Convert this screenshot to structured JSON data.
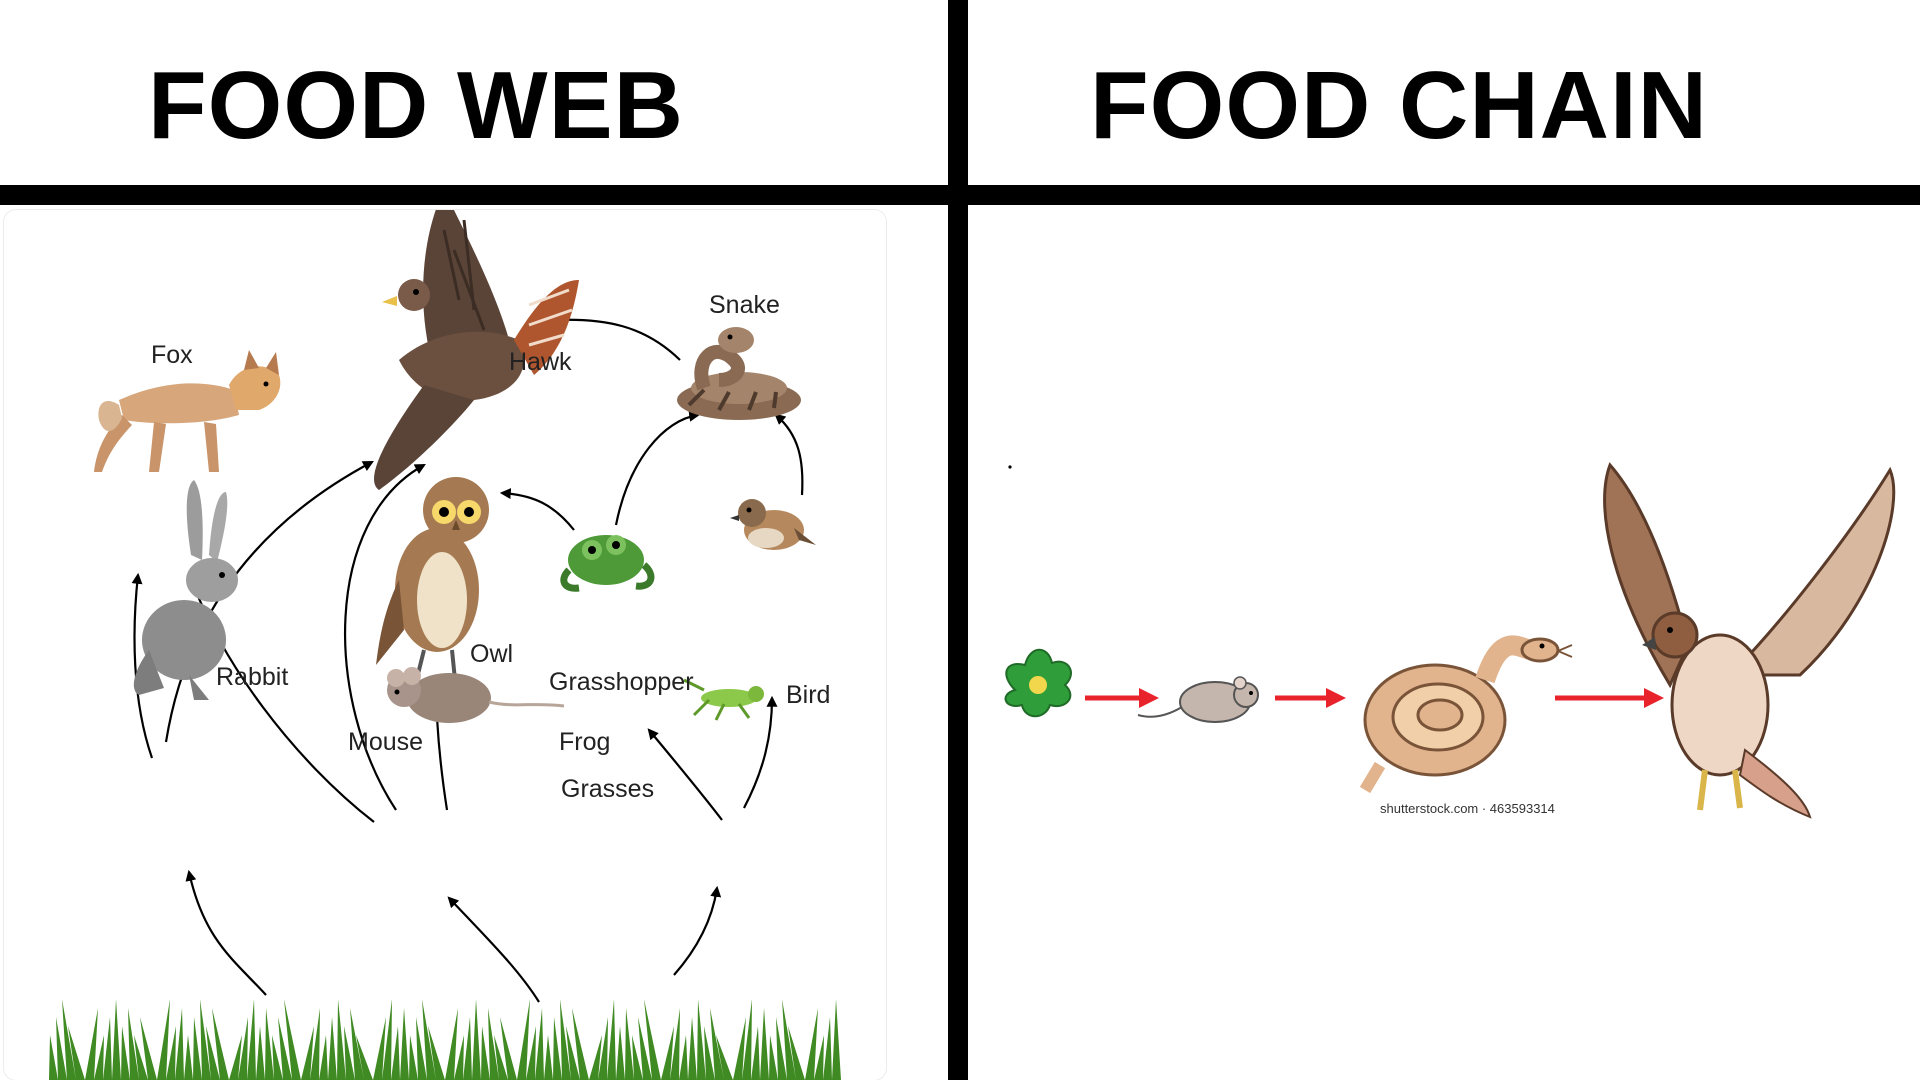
{
  "food_web": {
    "title": "FOOD WEB",
    "nodes": [
      {
        "id": "hawk",
        "label": "Hawk"
      },
      {
        "id": "fox",
        "label": "Fox"
      },
      {
        "id": "snake",
        "label": "Snake"
      },
      {
        "id": "owl",
        "label": "Owl"
      },
      {
        "id": "bird",
        "label": "Bird"
      },
      {
        "id": "frog",
        "label": "Frog"
      },
      {
        "id": "rabbit",
        "label": "Rabbit"
      },
      {
        "id": "mouse",
        "label": "Mouse"
      },
      {
        "id": "grasshopper",
        "label": "Grasshopper"
      },
      {
        "id": "grasses",
        "label": "Grasses"
      }
    ],
    "edges": [
      {
        "from": "grasses",
        "to": "rabbit"
      },
      {
        "from": "grasses",
        "to": "mouse"
      },
      {
        "from": "grasses",
        "to": "grasshopper"
      },
      {
        "from": "rabbit",
        "to": "fox"
      },
      {
        "from": "rabbit",
        "to": "hawk"
      },
      {
        "from": "mouse",
        "to": "fox"
      },
      {
        "from": "mouse",
        "to": "hawk"
      },
      {
        "from": "mouse",
        "to": "owl"
      },
      {
        "from": "grasshopper",
        "to": "frog"
      },
      {
        "from": "grasshopper",
        "to": "bird"
      },
      {
        "from": "frog",
        "to": "owl"
      },
      {
        "from": "frog",
        "to": "snake"
      },
      {
        "from": "bird",
        "to": "snake"
      },
      {
        "from": "snake",
        "to": "hawk"
      }
    ]
  },
  "food_chain": {
    "title": "FOOD CHAIN",
    "sequence": [
      "plant",
      "mouse",
      "snake",
      "hawk"
    ],
    "arrow_color": "#e8232b",
    "credit": "shutterstock.com · 463593314"
  },
  "colors": {
    "divider": "#000000",
    "arrow": "#000000",
    "grass": "#3f8a22"
  }
}
